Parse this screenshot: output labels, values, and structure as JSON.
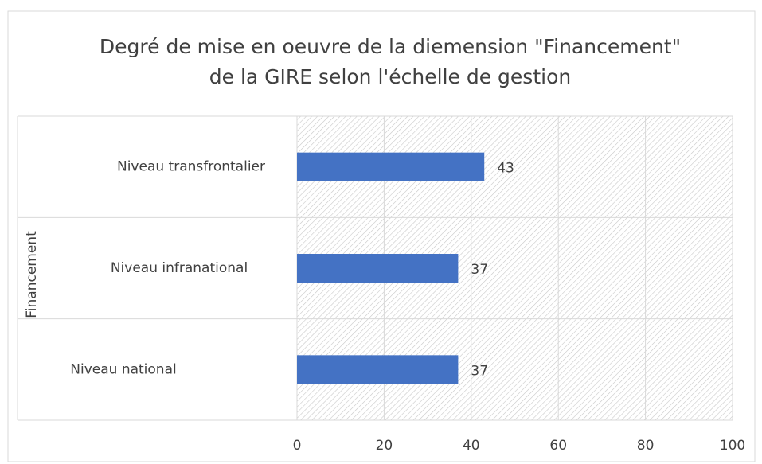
{
  "chart_data": {
    "type": "hbar",
    "title": [
      "Degré de mise en oeuvre de la diemension \"Financement\"",
      "de la GIRE selon l'échelle de gestion"
    ],
    "y_label": "Financement",
    "categories": [
      "Niveau transfrontalier",
      "Niveau infranational",
      "Niveau national"
    ],
    "values": [
      43,
      37,
      37
    ],
    "color": "#4472c4",
    "xlim": [
      0,
      100
    ],
    "xticks": [
      0,
      20,
      40,
      60,
      80,
      100
    ],
    "grid": true
  }
}
